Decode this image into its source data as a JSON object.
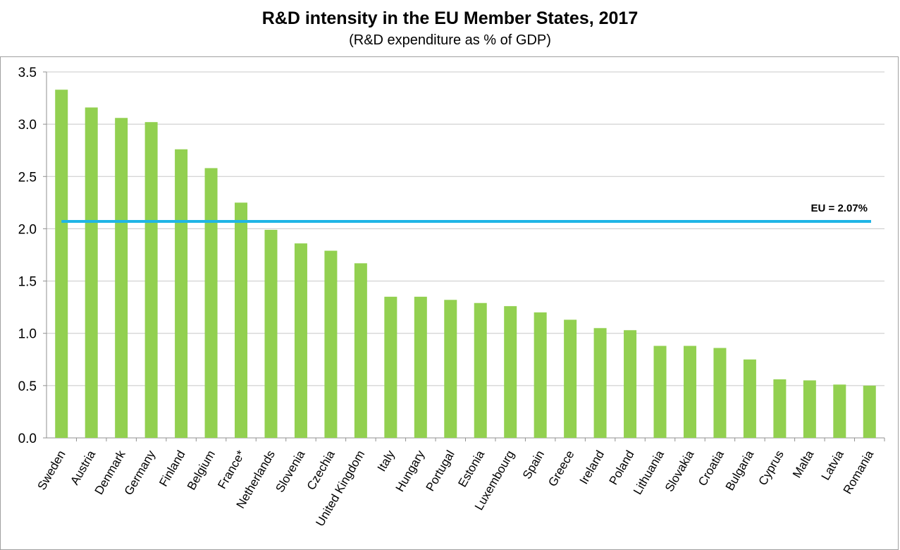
{
  "title": "R&D intensity in the EU Member States, 2017",
  "subtitle": "(R&D expenditure as % of GDP)",
  "chart_data": {
    "type": "bar",
    "title": "R&D intensity in the EU Member States, 2017",
    "subtitle": "(R&D expenditure as % of GDP)",
    "xlabel": "",
    "ylabel": "",
    "ylim": [
      0,
      3.5
    ],
    "yticks": [
      "0.0",
      "0.5",
      "1.0",
      "1.5",
      "2.0",
      "2.5",
      "3.0",
      "3.5"
    ],
    "grid": true,
    "categories": [
      "Sweden",
      "Austria",
      "Denmark",
      "Germany",
      "Finland",
      "Belgium",
      "France*",
      "Netherlands",
      "Slovenia",
      "Czechia",
      "United Kingdom",
      "Italy",
      "Hungary",
      "Portugal",
      "Estonia",
      "Luxembourg",
      "Spain",
      "Greece",
      "Ireland",
      "Poland",
      "Lithuania",
      "Slovakia",
      "Croatia",
      "Bulgaria",
      "Cyprus",
      "Malta",
      "Latvia",
      "Romania"
    ],
    "values": [
      3.33,
      3.16,
      3.06,
      3.02,
      2.76,
      2.58,
      2.25,
      1.99,
      1.86,
      1.79,
      1.67,
      1.35,
      1.35,
      1.32,
      1.29,
      1.26,
      1.2,
      1.13,
      1.05,
      1.03,
      0.88,
      0.88,
      0.86,
      0.75,
      0.56,
      0.55,
      0.51,
      0.5
    ],
    "reference_line": {
      "value": 2.07,
      "label": "EU = 2.07%"
    },
    "colors": {
      "bar": "#92d050",
      "reference_line": "#1fb5e6",
      "grid": "#c8c8c8"
    }
  }
}
